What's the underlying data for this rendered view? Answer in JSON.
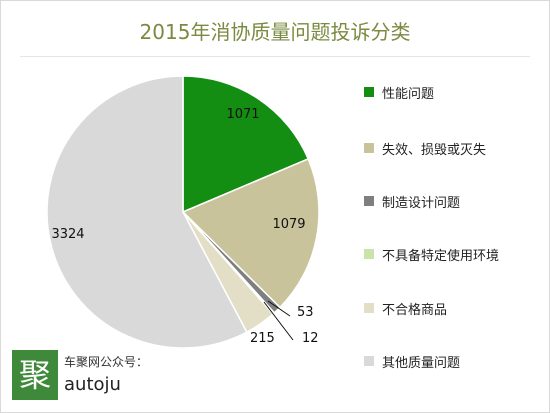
{
  "chart_data": {
    "type": "pie",
    "title": "2015年消协质量问题投诉分类",
    "legend_position": "right",
    "slices": [
      {
        "label": "性能问题",
        "value": 1071,
        "color": "#138d12"
      },
      {
        "label": "失效、损毁或灭失",
        "value": 1079,
        "color": "#c8c39b"
      },
      {
        "label": "制造设计问题",
        "value": 53,
        "color": "#7f7f7f"
      },
      {
        "label": "不具备特定使用环境",
        "value": 12,
        "color": "#c9e3a8"
      },
      {
        "label": "不合格商品",
        "value": 215,
        "color": "#e3dfc6"
      },
      {
        "label": "其他质量问题",
        "value": 3324,
        "color": "#d9d9d9"
      }
    ]
  },
  "brand": {
    "logo_char": "聚",
    "line1": "车聚网公众号：",
    "line2": "autoju"
  }
}
